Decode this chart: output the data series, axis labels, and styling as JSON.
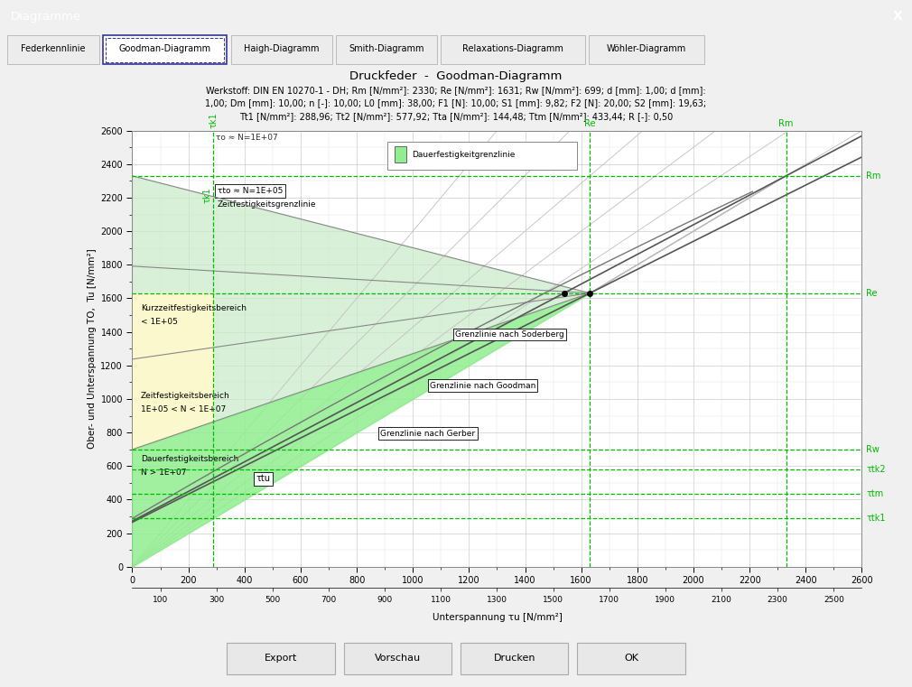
{
  "title": "Druckfeder  -  Goodman-Diagramm",
  "info_line1": "Werkstoff: DIN EN 10270-1 - DH; Rm [N/mm²]: 2330; Re [N/mm²]: 1631; Rw [N/mm²]: 699; d [mm]: 1,00; d [mm]:",
  "info_line2": "1,00; Dm [mm]: 10,00; n [-]: 10,00; L0 [mm]: 38,00; F1 [N]: 10,00; S1 [mm]: 9,82; F2 [N]: 20,00; S2 [mm]: 19,63;",
  "info_line3": "Tt1 [N/mm²]: 288,96; Tt2 [N/mm²]: 577,92; Tta [N/mm²]: 144,48; Ttm [N/mm²]: 433,44; R [-]: 0,50",
  "xlabel": "Unterspannung τu [N/mm²]",
  "ylabel": "Ober- und Unterspannung TO,  Tu [N/mm²]",
  "xmin": 0,
  "xmax": 2600,
  "ymin": 0,
  "ymax": 2600,
  "Rm": 2330,
  "Re": 1631,
  "Rw": 699,
  "Ttk1": 288.96,
  "Ttk2": 577.92,
  "Tta": 144.48,
  "Ttm": 433.44,
  "Tt1": 288.96,
  "Tt2": 577.92,
  "tabs": [
    "Federkennlinie",
    "Goodman-Diagramm",
    "Haigh-Diagramm",
    "Smith-Diagramm",
    "Relaxations-Diagramm",
    "Wöhler-Diagramm"
  ],
  "active_tab": 1,
  "buttons": [
    "Export",
    "Vorschau",
    "Drucken",
    "OK"
  ],
  "green_line_color": "#00BB00",
  "green_fill_bright": "#90EE90",
  "green_fill_medium": "#C8EAC8",
  "yellow_fill": "#FFFACD",
  "gray_fan": "#BBBBBB",
  "header_blue": "#1E90FF"
}
